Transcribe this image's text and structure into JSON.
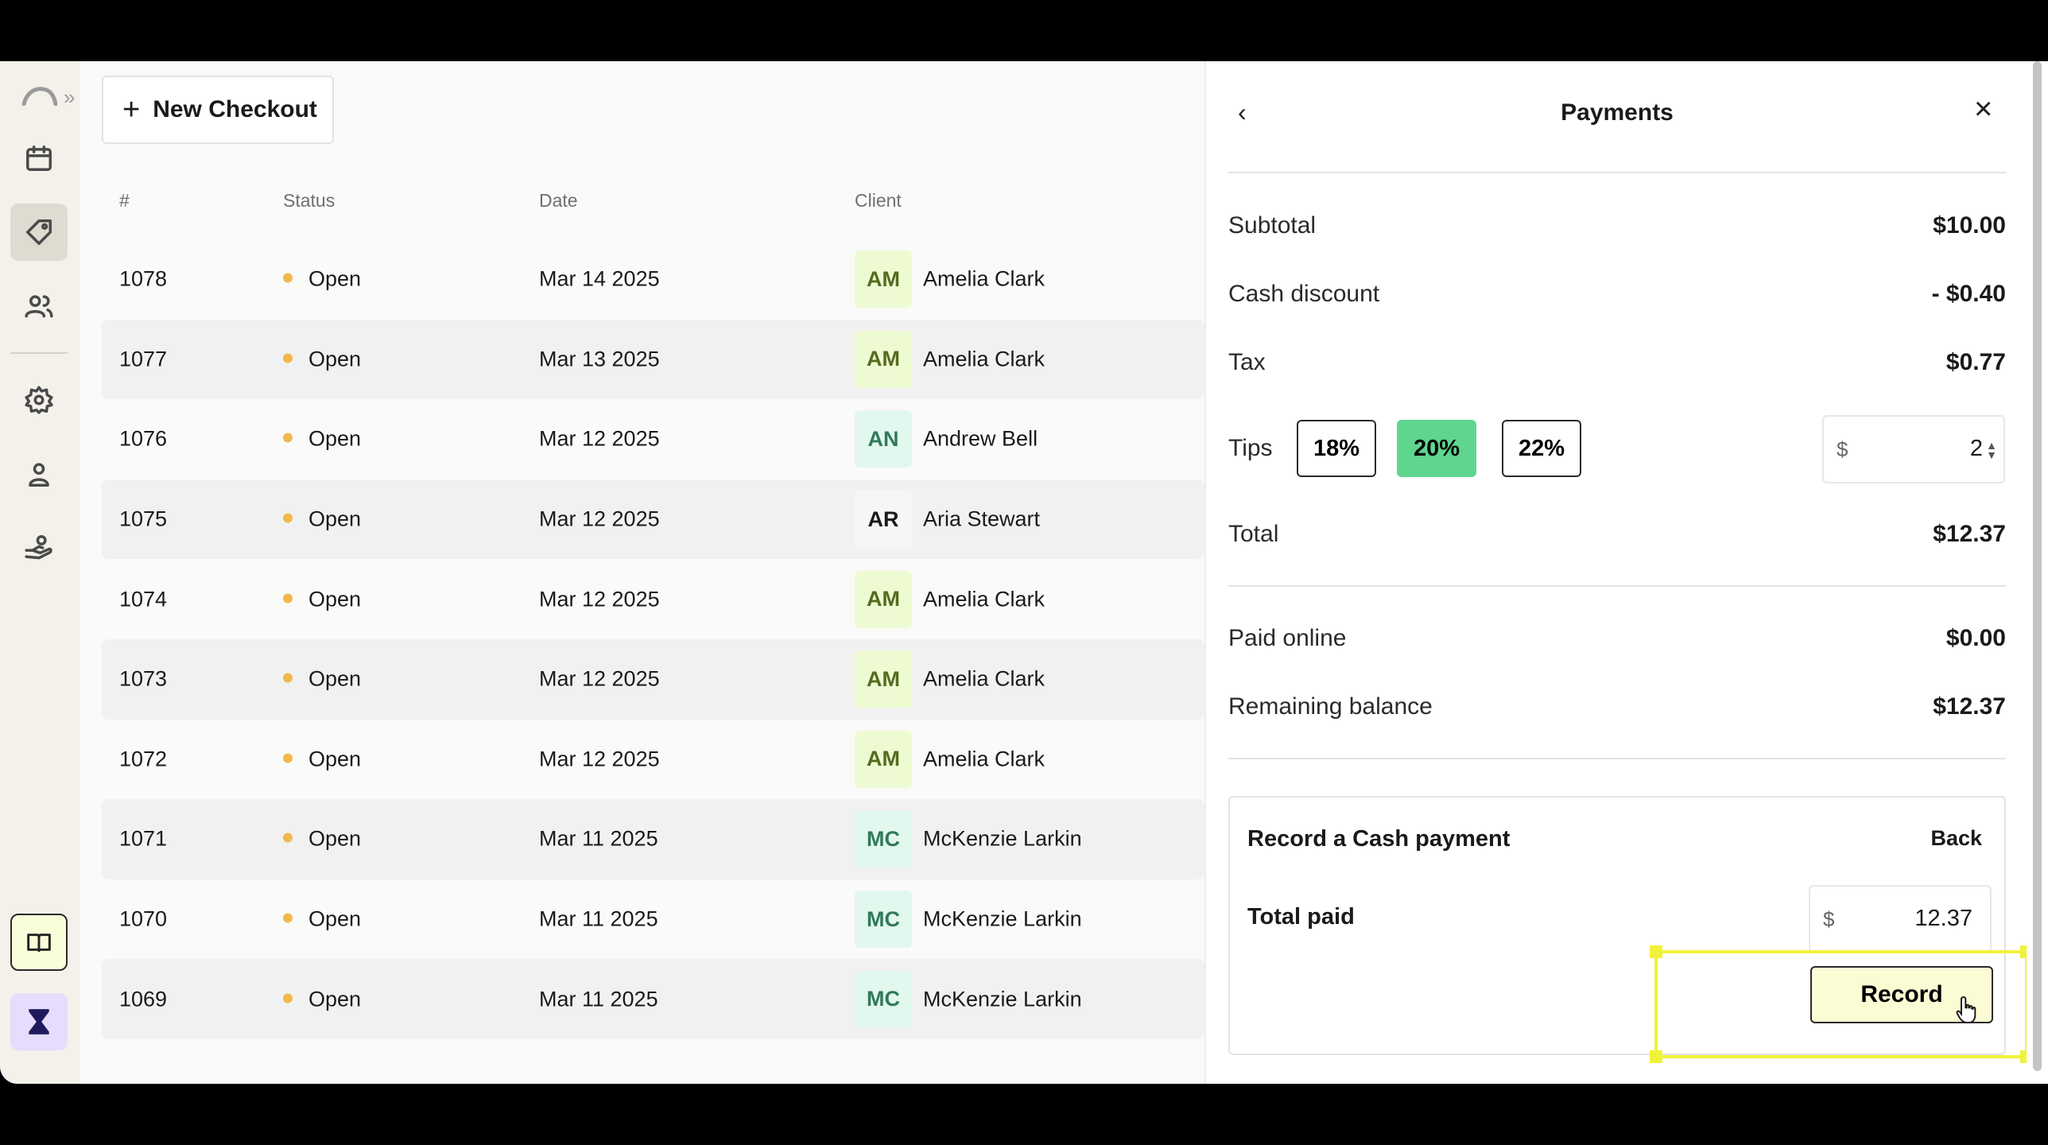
{
  "header": {
    "new_checkout_label": "New Checkout"
  },
  "table": {
    "columns": [
      "#",
      "Status",
      "Date",
      "Client"
    ],
    "rows": [
      {
        "id": "1078",
        "status": "Open",
        "date": "Mar 14 2025",
        "initials": "AM",
        "client": "Amelia Clark",
        "avatar_bg": "#eefbd2",
        "avatar_fg": "#556b1f"
      },
      {
        "id": "1077",
        "status": "Open",
        "date": "Mar 13 2025",
        "initials": "AM",
        "client": "Amelia Clark",
        "avatar_bg": "#eefbd2",
        "avatar_fg": "#556b1f"
      },
      {
        "id": "1076",
        "status": "Open",
        "date": "Mar 12 2025",
        "initials": "AN",
        "client": "Andrew Bell",
        "avatar_bg": "#e2f7ee",
        "avatar_fg": "#2f7a5a"
      },
      {
        "id": "1075",
        "status": "Open",
        "date": "Mar 12 2025",
        "initials": "AR",
        "client": "Aria Stewart",
        "avatar_bg": "#f6f6f6",
        "avatar_fg": "#1a1a1a"
      },
      {
        "id": "1074",
        "status": "Open",
        "date": "Mar 12 2025",
        "initials": "AM",
        "client": "Amelia Clark",
        "avatar_bg": "#eefbd2",
        "avatar_fg": "#556b1f"
      },
      {
        "id": "1073",
        "status": "Open",
        "date": "Mar 12 2025",
        "initials": "AM",
        "client": "Amelia Clark",
        "avatar_bg": "#eefbd2",
        "avatar_fg": "#556b1f"
      },
      {
        "id": "1072",
        "status": "Open",
        "date": "Mar 12 2025",
        "initials": "AM",
        "client": "Amelia Clark",
        "avatar_bg": "#eefbd2",
        "avatar_fg": "#556b1f"
      },
      {
        "id": "1071",
        "status": "Open",
        "date": "Mar 11 2025",
        "initials": "MC",
        "client": "McKenzie Larkin",
        "avatar_bg": "#e2f7ee",
        "avatar_fg": "#2f7a5a"
      },
      {
        "id": "1070",
        "status": "Open",
        "date": "Mar 11 2025",
        "initials": "MC",
        "client": "McKenzie Larkin",
        "avatar_bg": "#e2f7ee",
        "avatar_fg": "#2f7a5a"
      },
      {
        "id": "1069",
        "status": "Open",
        "date": "Mar 11 2025",
        "initials": "MC",
        "client": "McKenzie Larkin",
        "avatar_bg": "#e2f7ee",
        "avatar_fg": "#2f7a5a"
      }
    ]
  },
  "panel": {
    "title": "Payments",
    "subtotal_label": "Subtotal",
    "subtotal_value": "$10.00",
    "cash_discount_label": "Cash discount",
    "cash_discount_value": "- $0.40",
    "tax_label": "Tax",
    "tax_value": "$0.77",
    "tips_label": "Tips",
    "tip_options": [
      "18%",
      "20%",
      "22%"
    ],
    "tip_selected": "20%",
    "tip_currency": "$",
    "tip_amount": "2",
    "total_label": "Total",
    "total_value": "$12.37",
    "paid_online_label": "Paid online",
    "paid_online_value": "$0.00",
    "remaining_label": "Remaining balance",
    "remaining_value": "$12.37",
    "record_title": "Record a Cash payment",
    "record_back": "Back",
    "total_paid_label": "Total paid",
    "total_paid_currency": "$",
    "total_paid_value": "12.37",
    "record_button": "Record"
  },
  "colors": {
    "tip_selected": "#5fd58f",
    "status_open_dot": "#f2b84b",
    "highlight": "#f1f23b",
    "record_button_bg": "#fbfbd4"
  }
}
